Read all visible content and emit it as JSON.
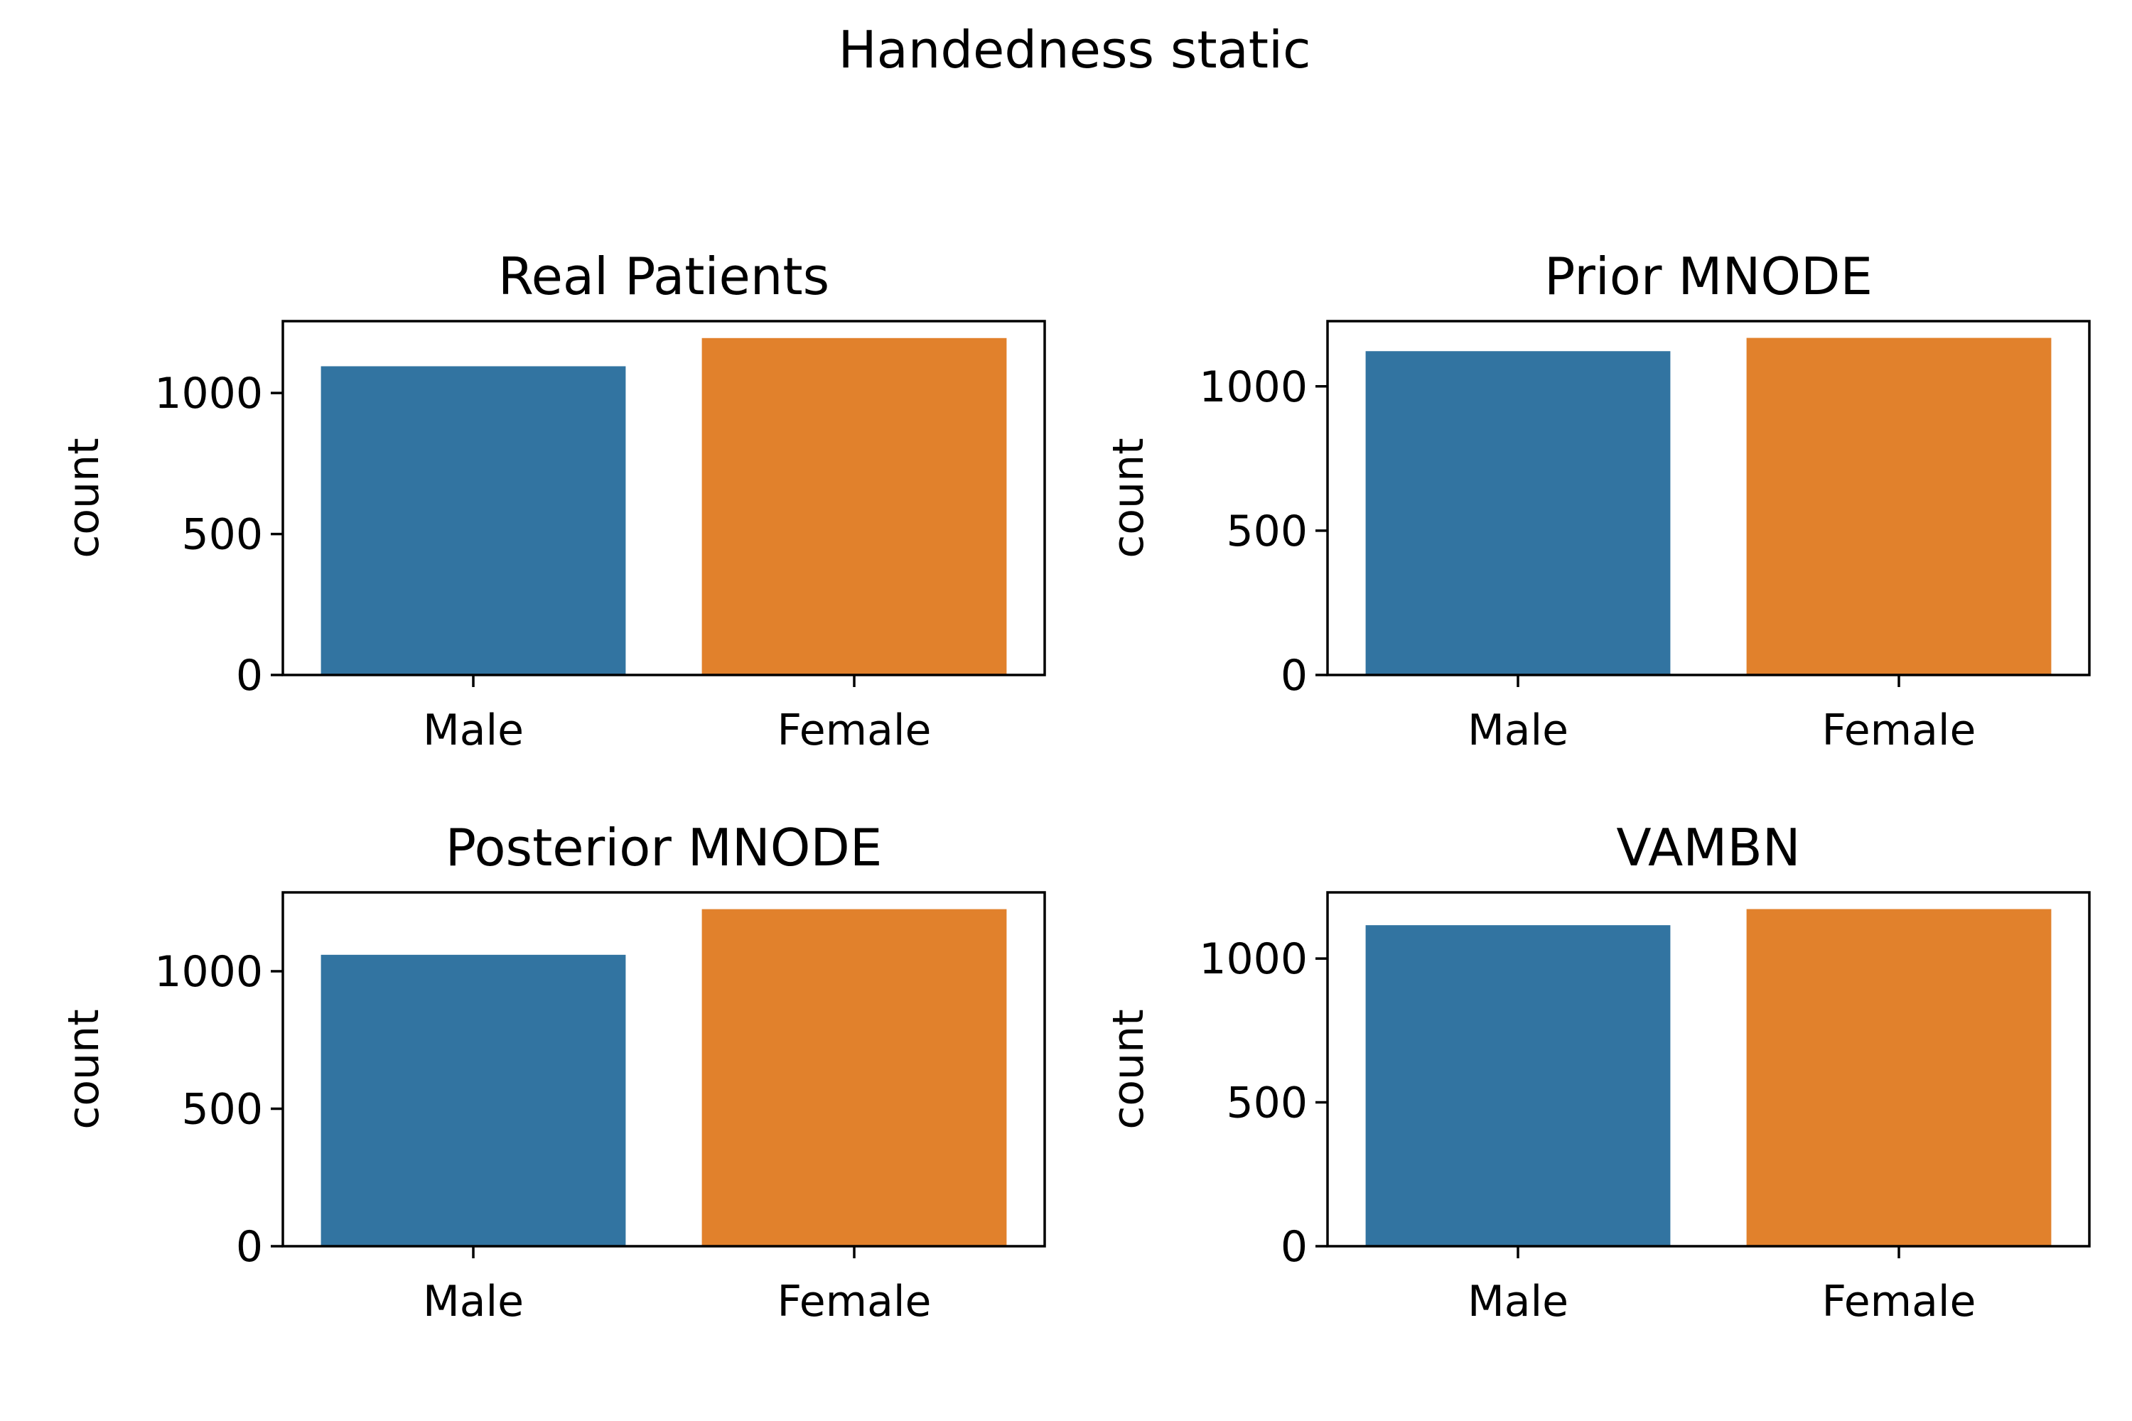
{
  "figure": {
    "suptitle": "Handedness static"
  },
  "chart_data": [
    {
      "type": "bar",
      "title": "Real Patients",
      "xlabel": "",
      "ylabel": "count",
      "categories": [
        "Male",
        "Female"
      ],
      "values": [
        1095,
        1195
      ],
      "colors": [
        "#3274a1",
        "#e1812c"
      ],
      "ylim": [
        0,
        1255
      ],
      "yticks": [
        0,
        500,
        1000
      ]
    },
    {
      "type": "bar",
      "title": "Prior MNODE",
      "xlabel": "",
      "ylabel": "count",
      "categories": [
        "Male",
        "Female"
      ],
      "values": [
        1122,
        1168
      ],
      "colors": [
        "#3274a1",
        "#e1812c"
      ],
      "ylim": [
        0,
        1226
      ],
      "yticks": [
        0,
        500,
        1000
      ]
    },
    {
      "type": "bar",
      "title": "Posterior MNODE",
      "xlabel": "",
      "ylabel": "count",
      "categories": [
        "Male",
        "Female"
      ],
      "values": [
        1060,
        1226
      ],
      "colors": [
        "#3274a1",
        "#e1812c"
      ],
      "ylim": [
        0,
        1287
      ],
      "yticks": [
        0,
        500,
        1000
      ]
    },
    {
      "type": "bar",
      "title": "VAMBN",
      "xlabel": "",
      "ylabel": "count",
      "categories": [
        "Male",
        "Female"
      ],
      "values": [
        1116,
        1172
      ],
      "colors": [
        "#3274a1",
        "#e1812c"
      ],
      "ylim": [
        0,
        1230
      ],
      "yticks": [
        0,
        500,
        1000
      ]
    }
  ]
}
